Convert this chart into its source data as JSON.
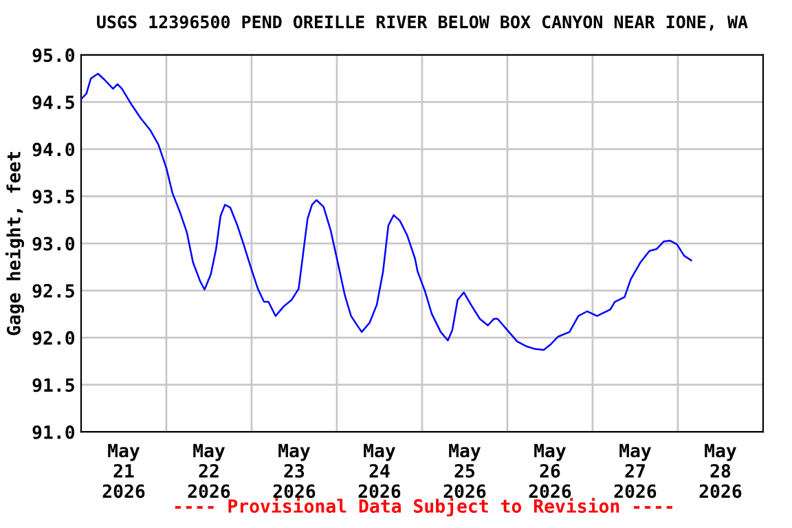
{
  "chart_data": {
    "type": "line",
    "title": "USGS 12396500 PEND OREILLE RIVER BELOW BOX CANYON NEAR IONE, WA",
    "ylabel": "Gage height, feet",
    "annotations": [
      "---- Provisional Data Subject to Revision ----"
    ],
    "x": [
      "2026-05-21T00:00",
      "2026-05-21T01:30",
      "2026-05-21T02:45",
      "2026-05-21T04:45",
      "2026-05-21T06:30",
      "2026-05-21T09:00",
      "2026-05-21T10:15",
      "2026-05-21T11:30",
      "2026-05-21T14:15",
      "2026-05-21T16:45",
      "2026-05-21T19:30",
      "2026-05-21T21:45",
      "2026-05-22T00:00",
      "2026-05-22T01:45",
      "2026-05-22T03:45",
      "2026-05-22T05:45",
      "2026-05-22T07:30",
      "2026-05-22T09:30",
      "2026-05-22T10:45",
      "2026-05-22T12:30",
      "2026-05-22T14:00",
      "2026-05-22T15:15",
      "2026-05-22T16:30",
      "2026-05-22T18:00",
      "2026-05-22T20:00",
      "2026-05-22T21:45",
      "2026-05-22T23:45",
      "2026-05-23T01:45",
      "2026-05-23T03:30",
      "2026-05-23T04:45",
      "2026-05-23T06:45",
      "2026-05-23T09:00",
      "2026-05-23T11:15",
      "2026-05-23T13:15",
      "2026-05-23T14:30",
      "2026-05-23T15:45",
      "2026-05-23T17:00",
      "2026-05-23T18:15",
      "2026-05-23T20:15",
      "2026-05-23T22:15",
      "2026-05-24T00:15",
      "2026-05-24T02:15",
      "2026-05-24T04:00",
      "2026-05-24T05:45",
      "2026-05-24T07:00",
      "2026-05-24T09:15",
      "2026-05-24T11:15",
      "2026-05-24T13:00",
      "2026-05-24T14:30",
      "2026-05-24T16:00",
      "2026-05-24T17:45",
      "2026-05-24T19:45",
      "2026-05-24T22:00",
      "2026-05-24T22:45",
      "2026-05-25T00:45",
      "2026-05-25T02:45",
      "2026-05-25T05:15",
      "2026-05-25T07:15",
      "2026-05-25T08:30",
      "2026-05-25T10:00",
      "2026-05-25T11:45",
      "2026-05-25T13:45",
      "2026-05-25T16:15",
      "2026-05-25T18:30",
      "2026-05-25T20:15",
      "2026-05-25T21:15",
      "2026-05-26T00:00",
      "2026-05-26T02:45",
      "2026-05-26T05:15",
      "2026-05-26T07:45",
      "2026-05-26T10:15",
      "2026-05-26T12:15",
      "2026-05-26T14:15",
      "2026-05-26T17:30",
      "2026-05-26T20:00",
      "2026-05-26T22:30",
      "2026-05-27T01:15",
      "2026-05-27T05:00",
      "2026-05-27T06:15",
      "2026-05-27T09:00",
      "2026-05-27T10:45",
      "2026-05-27T13:30",
      "2026-05-27T16:00",
      "2026-05-27T18:00",
      "2026-05-27T20:00",
      "2026-05-27T21:45",
      "2026-05-27T23:45",
      "2026-05-28T01:45",
      "2026-05-28T03:45"
    ],
    "series": [
      {
        "color": "#0000ff",
        "values": [
          94.53,
          94.59,
          94.75,
          94.8,
          94.74,
          94.64,
          94.69,
          94.64,
          94.47,
          94.33,
          94.2,
          94.05,
          93.8,
          93.53,
          93.34,
          93.12,
          92.8,
          92.6,
          92.51,
          92.67,
          92.94,
          93.29,
          93.41,
          93.38,
          93.19,
          92.99,
          92.75,
          92.52,
          92.38,
          92.38,
          92.23,
          92.33,
          92.4,
          92.52,
          92.89,
          93.26,
          93.41,
          93.46,
          93.39,
          93.14,
          92.8,
          92.45,
          92.23,
          92.13,
          92.06,
          92.16,
          92.35,
          92.7,
          93.19,
          93.3,
          93.24,
          93.09,
          92.84,
          92.7,
          92.5,
          92.25,
          92.06,
          91.97,
          92.08,
          92.4,
          92.48,
          92.35,
          92.2,
          92.13,
          92.2,
          92.2,
          92.08,
          91.96,
          91.91,
          91.88,
          91.87,
          91.93,
          92.01,
          92.06,
          92.23,
          92.28,
          92.23,
          92.3,
          92.38,
          92.43,
          92.62,
          92.8,
          92.92,
          92.94,
          93.02,
          93.03,
          92.99,
          92.87,
          92.82
        ]
      }
    ],
    "xlim": [
      "2026-05-21T00:00",
      "2026-05-29T00:00"
    ],
    "xticks": [
      {
        "value": "2026-05-21T12:00",
        "label": "May\n21\n2026"
      },
      {
        "value": "2026-05-22T12:00",
        "label": "May\n22\n2026"
      },
      {
        "value": "2026-05-23T12:00",
        "label": "May\n23\n2026"
      },
      {
        "value": "2026-05-24T12:00",
        "label": "May\n24\n2026"
      },
      {
        "value": "2026-05-25T12:00",
        "label": "May\n25\n2026"
      },
      {
        "value": "2026-05-26T12:00",
        "label": "May\n26\n2026"
      },
      {
        "value": "2026-05-27T12:00",
        "label": "May\n27\n2026"
      },
      {
        "value": "2026-05-28T12:00",
        "label": "May\n28\n2026"
      },
      {
        "value": "2026-05-22T00:00",
        "label": null
      },
      {
        "value": "2026-05-23T00:00",
        "label": null
      },
      {
        "value": "2026-05-24T00:00",
        "label": null
      },
      {
        "value": "2026-05-25T00:00",
        "label": null
      },
      {
        "value": "2026-05-26T00:00",
        "label": null
      },
      {
        "value": "2026-05-27T00:00",
        "label": null
      },
      {
        "value": "2026-05-28T00:00",
        "label": null
      }
    ],
    "ylim": [
      91.0,
      95.0
    ],
    "yticks": [
      {
        "value": 91.0,
        "label": "91.0"
      },
      {
        "value": 91.5,
        "label": "91.5"
      },
      {
        "value": 92.0,
        "label": "92.0"
      },
      {
        "value": 92.5,
        "label": "92.5"
      },
      {
        "value": 93.0,
        "label": "93.0"
      },
      {
        "value": 93.5,
        "label": "93.5"
      },
      {
        "value": 94.0,
        "label": "94.0"
      },
      {
        "value": 94.5,
        "label": "94.5"
      },
      {
        "value": 95.0,
        "label": "95.0"
      }
    ],
    "grid": true,
    "legend": false,
    "marker": "none",
    "line_style": "solid"
  }
}
